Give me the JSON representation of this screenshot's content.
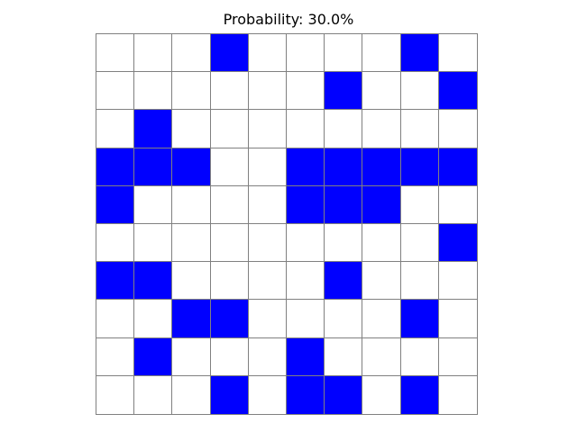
{
  "title": "Probability: 30.0%",
  "colors": {
    "filled": "#0000ff",
    "empty": "#ffffff",
    "grid_line": "#808080"
  },
  "grid": {
    "rows": 10,
    "cols": 10,
    "cells": [
      [
        0,
        0,
        0,
        1,
        0,
        0,
        0,
        0,
        1,
        0
      ],
      [
        0,
        0,
        0,
        0,
        0,
        0,
        1,
        0,
        0,
        1
      ],
      [
        0,
        1,
        0,
        0,
        0,
        0,
        0,
        0,
        0,
        0
      ],
      [
        1,
        1,
        1,
        0,
        0,
        1,
        1,
        1,
        1,
        1
      ],
      [
        1,
        0,
        0,
        0,
        0,
        1,
        1,
        1,
        0,
        0
      ],
      [
        0,
        0,
        0,
        0,
        0,
        0,
        0,
        0,
        0,
        1
      ],
      [
        1,
        1,
        0,
        0,
        0,
        0,
        1,
        0,
        0,
        0
      ],
      [
        0,
        0,
        1,
        1,
        0,
        0,
        0,
        0,
        1,
        0
      ],
      [
        0,
        1,
        0,
        0,
        0,
        1,
        0,
        0,
        0,
        0
      ],
      [
        0,
        0,
        0,
        1,
        0,
        1,
        1,
        0,
        1,
        0
      ]
    ]
  }
}
